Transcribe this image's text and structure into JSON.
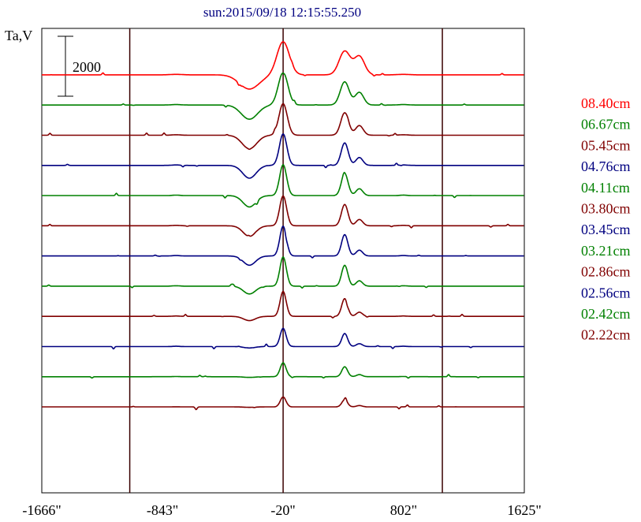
{
  "chart_data": {
    "type": "line",
    "title": "sun:2015/09/18 12:15:55.250",
    "ylabel": "Ta,V",
    "scale_bar_label": "2000",
    "scale_bar_value": 2000,
    "xlim": [
      -1666,
      1625
    ],
    "x_tick_labels": [
      "-1666\"",
      "-843\"",
      "-20\"",
      "802\"",
      "1625\""
    ],
    "x_tick_values": [
      -1666,
      -843,
      -20,
      802,
      1625
    ],
    "vertical_markers": [
      -1066,
      -20,
      1066
    ],
    "grid": false,
    "legend_position": "right",
    "series": [
      {
        "name": "08.40cm",
        "color": "#ff0000",
        "baseline": 0.9,
        "amp": 1.0,
        "width": 1.0,
        "dip_depth": 1.0,
        "noise_seed": 1
      },
      {
        "name": "06.67cm",
        "color": "#008000",
        "baseline": 0.835,
        "amp": 0.98,
        "width": 0.7,
        "dip_depth": 1.0,
        "noise_seed": 2
      },
      {
        "name": "05.45cm",
        "color": "#800000",
        "baseline": 0.77,
        "amp": 0.95,
        "width": 0.55,
        "dip_depth": 0.95,
        "noise_seed": 3
      },
      {
        "name": "04.76cm",
        "color": "#000080",
        "baseline": 0.705,
        "amp": 0.95,
        "width": 0.45,
        "dip_depth": 0.9,
        "noise_seed": 4
      },
      {
        "name": "04.11cm",
        "color": "#008000",
        "baseline": 0.64,
        "amp": 0.93,
        "width": 0.4,
        "dip_depth": 0.8,
        "noise_seed": 5
      },
      {
        "name": "03.80cm",
        "color": "#800000",
        "baseline": 0.575,
        "amp": 0.9,
        "width": 0.38,
        "dip_depth": 0.75,
        "noise_seed": 6
      },
      {
        "name": "03.45cm",
        "color": "#000080",
        "baseline": 0.51,
        "amp": 0.9,
        "width": 0.35,
        "dip_depth": 0.65,
        "noise_seed": 7
      },
      {
        "name": "03.21cm",
        "color": "#008000",
        "baseline": 0.445,
        "amp": 0.88,
        "width": 0.33,
        "dip_depth": 0.55,
        "noise_seed": 8
      },
      {
        "name": "02.86cm",
        "color": "#800000",
        "baseline": 0.38,
        "amp": 0.75,
        "width": 0.3,
        "dip_depth": 0.3,
        "noise_seed": 9
      },
      {
        "name": "02.56cm",
        "color": "#000080",
        "baseline": 0.315,
        "amp": 0.55,
        "width": 0.28,
        "dip_depth": 0.1,
        "noise_seed": 10
      },
      {
        "name": "02.42cm",
        "color": "#008000",
        "baseline": 0.25,
        "amp": 0.42,
        "width": 0.27,
        "dip_depth": 0.05,
        "noise_seed": 11
      },
      {
        "name": "02.22cm",
        "color": "#800000",
        "baseline": 0.185,
        "amp": 0.3,
        "width": 0.25,
        "dip_depth": 0.03,
        "noise_seed": 12
      }
    ]
  }
}
